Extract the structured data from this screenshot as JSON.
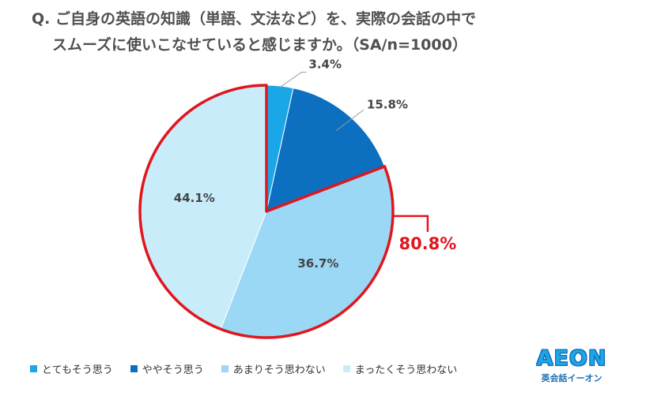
{
  "question": {
    "line1": "Q. ご自身の英語の知識（単語、文法など）を、実際の会話の中で",
    "line2": "スムーズに使いこなせていると感じますか。（SA/n=1000）"
  },
  "chart_data": {
    "type": "pie",
    "categories": [
      "とてもそう思う",
      "ややそう思う",
      "あまりそう思わない",
      "まったくそう思わない"
    ],
    "values": [
      3.4,
      15.8,
      36.7,
      44.1
    ],
    "value_labels": [
      "3.4%",
      "15.8%",
      "36.7%",
      "44.1%"
    ],
    "colors": [
      "#1aa7e8",
      "#0d6fbf",
      "#9ad8f6",
      "#c9ecfb"
    ],
    "start_angle_deg": 0,
    "direction": "clockwise",
    "legend_placement": "bottom",
    "highlight": {
      "categories": [
        "あまりそう思わない",
        "まったくそう思わない"
      ],
      "total_label": "80.8%",
      "color": "#e0161e"
    }
  },
  "logo": {
    "mark": "AEON",
    "sub": "英会話イーオン"
  }
}
